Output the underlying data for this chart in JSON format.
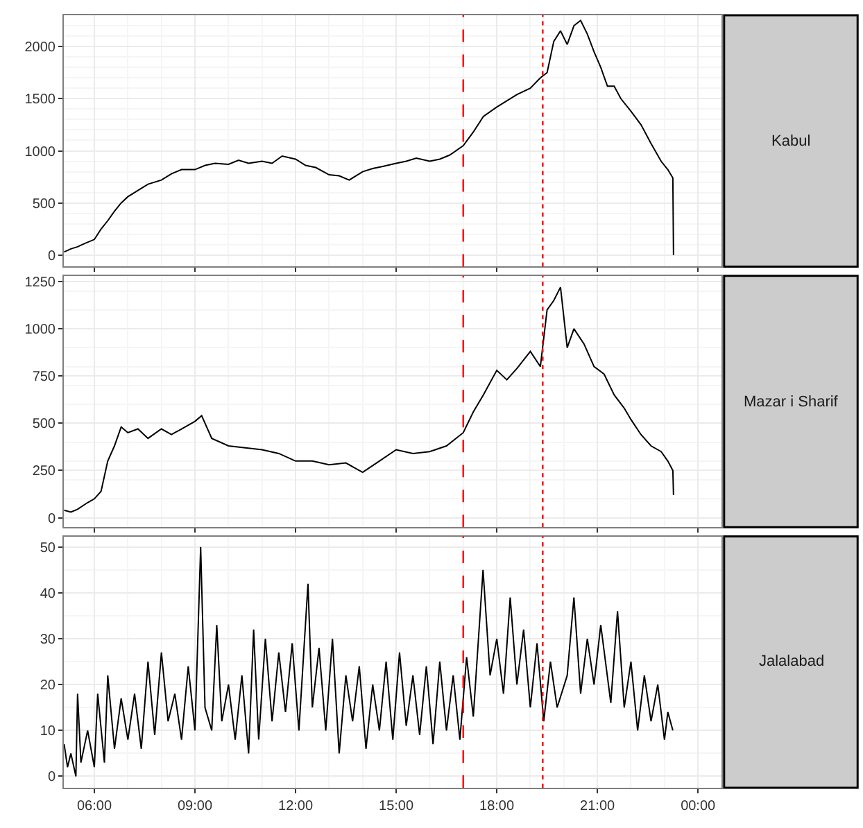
{
  "chart_data": [
    {
      "type": "line",
      "annotations": [
        "Kabul"
      ],
      "tick_labels": "y",
      "grid": true,
      "series": [
        {
          "color": "#000000",
          "x": [
            5.1,
            5.3,
            5.5,
            5.7,
            6.0,
            6.2,
            6.4,
            6.6,
            6.8,
            7.0,
            7.3,
            7.6,
            8.0,
            8.3,
            8.6,
            9.0,
            9.3,
            9.6,
            10.0,
            10.3,
            10.6,
            11.0,
            11.3,
            11.6,
            12.0,
            12.3,
            12.6,
            13.0,
            13.3,
            13.6,
            14.0,
            14.3,
            14.6,
            15.0,
            15.3,
            15.6,
            16.0,
            16.3,
            16.6,
            17.0,
            17.3,
            17.6,
            18.0,
            18.3,
            18.6,
            19.0,
            19.3,
            19.5,
            19.7,
            19.9,
            20.1,
            20.3,
            20.5,
            20.7,
            20.9,
            21.1,
            21.3,
            21.5,
            21.7,
            22.0,
            22.3,
            22.6,
            22.9,
            23.1,
            23.25,
            23.27
          ],
          "values": [
            30,
            60,
            80,
            110,
            150,
            250,
            330,
            420,
            500,
            560,
            620,
            680,
            720,
            780,
            820,
            820,
            860,
            880,
            870,
            910,
            880,
            900,
            880,
            950,
            920,
            860,
            840,
            770,
            760,
            720,
            800,
            830,
            850,
            880,
            900,
            930,
            900,
            920,
            960,
            1050,
            1180,
            1330,
            1420,
            1480,
            1540,
            1600,
            1700,
            1750,
            2050,
            2150,
            2020,
            2200,
            2250,
            2120,
            1950,
            1800,
            1620,
            1620,
            1500,
            1380,
            1250,
            1070,
            900,
            820,
            740,
            0
          ]
        }
      ],
      "xlim": [
        5.09,
        24.7
      ],
      "ylim": [
        -110,
        2300
      ],
      "yticks": [
        0,
        500,
        1000,
        1500,
        2000
      ],
      "ref_lines": [
        {
          "axis": "x",
          "value": 17.0,
          "color": "#ff0000",
          "line_style": "dashed"
        },
        {
          "axis": "x",
          "value": 19.37,
          "color": "#ff0000",
          "line_style": "dotted"
        }
      ]
    },
    {
      "type": "line",
      "annotations": [
        "Mazar i Sharif"
      ],
      "tick_labels": "y",
      "grid": true,
      "series": [
        {
          "color": "#000000",
          "x": [
            5.1,
            5.3,
            5.5,
            5.8,
            6.0,
            6.2,
            6.4,
            6.6,
            6.8,
            7.0,
            7.3,
            7.6,
            8.0,
            8.3,
            8.6,
            9.0,
            9.2,
            9.5,
            10.0,
            10.5,
            11.0,
            11.5,
            12.0,
            12.5,
            13.0,
            13.5,
            14.0,
            14.5,
            15.0,
            15.5,
            16.0,
            16.5,
            17.0,
            17.3,
            17.6,
            18.0,
            18.3,
            18.6,
            19.0,
            19.3,
            19.5,
            19.7,
            19.9,
            20.1,
            20.3,
            20.6,
            20.9,
            21.2,
            21.5,
            21.8,
            22.0,
            22.3,
            22.6,
            22.9,
            23.1,
            23.25,
            23.27
          ],
          "values": [
            40,
            30,
            45,
            80,
            100,
            140,
            300,
            380,
            480,
            450,
            470,
            420,
            470,
            440,
            470,
            510,
            540,
            420,
            380,
            370,
            360,
            340,
            300,
            300,
            280,
            290,
            240,
            300,
            360,
            340,
            350,
            380,
            450,
            560,
            650,
            780,
            730,
            790,
            880,
            800,
            1100,
            1150,
            1220,
            900,
            1000,
            920,
            800,
            760,
            650,
            580,
            520,
            440,
            380,
            350,
            300,
            250,
            120
          ]
        }
      ],
      "xlim": [
        5.09,
        24.7
      ],
      "ylim": [
        -50,
        1280
      ],
      "yticks": [
        0,
        250,
        500,
        750,
        1000,
        1250
      ],
      "ref_lines": [
        {
          "axis": "x",
          "value": 17.0,
          "color": "#ff0000",
          "line_style": "dashed"
        },
        {
          "axis": "x",
          "value": 19.37,
          "color": "#ff0000",
          "line_style": "dotted"
        }
      ]
    },
    {
      "type": "line",
      "annotations": [
        "Jalalabad"
      ],
      "grid": true,
      "series": [
        {
          "color": "#000000",
          "x": [
            5.1,
            5.2,
            5.3,
            5.45,
            5.5,
            5.6,
            5.8,
            6.0,
            6.1,
            6.3,
            6.4,
            6.6,
            6.8,
            7.0,
            7.2,
            7.4,
            7.6,
            7.8,
            8.0,
            8.2,
            8.4,
            8.6,
            8.8,
            9.0,
            9.17,
            9.3,
            9.5,
            9.65,
            9.8,
            10.0,
            10.2,
            10.4,
            10.6,
            10.75,
            10.9,
            11.1,
            11.3,
            11.5,
            11.7,
            11.9,
            12.1,
            12.37,
            12.5,
            12.7,
            12.9,
            13.1,
            13.3,
            13.5,
            13.7,
            13.9,
            14.1,
            14.3,
            14.5,
            14.7,
            14.9,
            15.1,
            15.3,
            15.5,
            15.7,
            15.9,
            16.1,
            16.3,
            16.5,
            16.7,
            16.9,
            17.1,
            17.3,
            17.59,
            17.8,
            18.0,
            18.2,
            18.4,
            18.6,
            18.8,
            19.0,
            19.2,
            19.4,
            19.6,
            19.8,
            20.1,
            20.3,
            20.5,
            20.7,
            20.9,
            21.1,
            21.4,
            21.6,
            21.8,
            22.0,
            22.2,
            22.4,
            22.6,
            22.8,
            23.0,
            23.1,
            23.25
          ],
          "values": [
            7,
            2,
            5,
            0,
            18,
            3,
            10,
            2,
            18,
            3,
            22,
            6,
            17,
            8,
            18,
            6,
            25,
            9,
            27,
            12,
            18,
            8,
            24,
            10,
            50,
            15,
            10,
            33,
            12,
            20,
            8,
            22,
            5,
            32,
            8,
            30,
            12,
            27,
            14,
            29,
            10,
            42,
            15,
            28,
            10,
            30,
            5,
            22,
            12,
            24,
            6,
            20,
            10,
            25,
            8,
            27,
            11,
            22,
            9,
            24,
            7,
            25,
            10,
            22,
            8,
            26,
            13,
            45,
            22,
            30,
            18,
            39,
            20,
            32,
            15,
            29,
            12,
            25,
            15,
            22,
            39,
            18,
            30,
            20,
            33,
            16,
            36,
            15,
            25,
            10,
            22,
            12,
            20,
            8,
            14,
            10
          ]
        }
      ],
      "xlim": [
        5.09,
        24.7
      ],
      "ylim": [
        -2.5,
        52.3
      ],
      "yticks": [
        0,
        10,
        20,
        30,
        40,
        50
      ],
      "xticks": [
        {
          "value": 6,
          "label": "06:00"
        },
        {
          "value": 9,
          "label": "09:00"
        },
        {
          "value": 12,
          "label": "12:00"
        },
        {
          "value": 15,
          "label": "15:00"
        },
        {
          "value": 18,
          "label": "18:00"
        },
        {
          "value": 21,
          "label": "21:00"
        },
        {
          "value": 24,
          "label": "00:00"
        }
      ],
      "ref_lines": [
        {
          "axis": "x",
          "value": 17.0,
          "color": "#ff0000",
          "line_style": "dashed"
        },
        {
          "axis": "x",
          "value": 19.37,
          "color": "#ff0000",
          "line_style": "dotted"
        }
      ]
    }
  ]
}
